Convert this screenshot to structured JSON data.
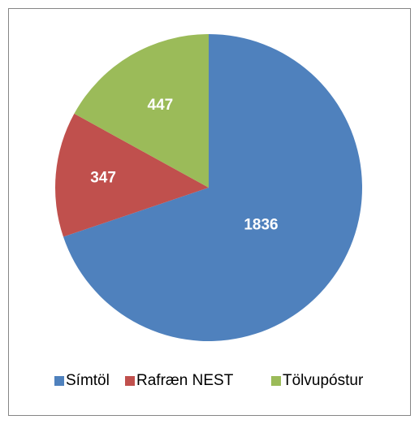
{
  "chart_data": {
    "type": "pie",
    "categories": [
      "Símtöl",
      "Rafræn NEST",
      "Tölvupóstur"
    ],
    "values": [
      1836,
      347,
      447
    ],
    "colors": [
      "#4f81bd",
      "#c0504d",
      "#9bbb59"
    ],
    "legend": "bottom"
  }
}
